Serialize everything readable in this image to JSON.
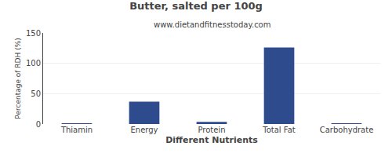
{
  "chart_data": {
    "type": "bar",
    "title": "Butter, salted per 100g",
    "subtitle": "www.dietandfitnesstoday.com",
    "xlabel": "Different Nutrients",
    "ylabel": "Percentage of RDH (%)",
    "categories": [
      "Thiamin",
      "Energy",
      "Protein",
      "Total Fat",
      "Carbohydrate"
    ],
    "values": [
      0.5,
      37,
      3.5,
      126,
      0.5
    ],
    "color": "#2e4b8e",
    "ylim": [
      0,
      150
    ],
    "yticks": [
      0,
      50,
      100,
      150
    ],
    "grid": true
  }
}
